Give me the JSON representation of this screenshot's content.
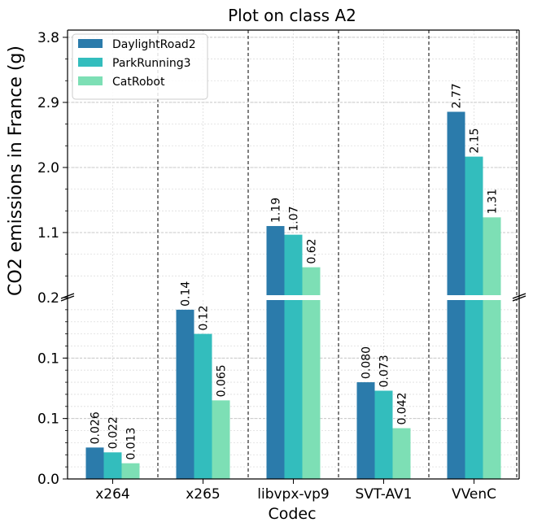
{
  "chart_data": {
    "type": "bar",
    "title": "Plot on class A2",
    "xlabel": "Codec",
    "ylabel": "CO2 emissions in France (g)",
    "categories": [
      "x264",
      "x265",
      "libvpx-vp9",
      "SVT-AV1",
      "VVenC"
    ],
    "series": [
      {
        "name": "DaylightRoad2",
        "color": "#2b7bab",
        "values": [
          0.026,
          0.14,
          1.19,
          0.08,
          2.77
        ],
        "labels": [
          "0.026",
          "0.14",
          "1.19",
          "0.080",
          "2.77"
        ]
      },
      {
        "name": "ParkRunning3",
        "color": "#33bdbd",
        "values": [
          0.022,
          0.12,
          1.07,
          0.073,
          2.15
        ],
        "labels": [
          "0.022",
          "0.12",
          "1.07",
          "0.073",
          "2.15"
        ]
      },
      {
        "name": "CatRobot",
        "color": "#7ddfb5",
        "values": [
          0.013,
          0.065,
          0.62,
          0.042,
          1.31
        ],
        "labels": [
          "0.013",
          "0.065",
          "0.62",
          "0.042",
          "1.31"
        ]
      }
    ],
    "broken_axis": true,
    "lower_ylim": [
      0,
      0.15
    ],
    "upper_ylim": [
      0.2,
      3.9
    ],
    "lower_ticks": [
      {
        "value": 0.0,
        "label": "0.0"
      },
      {
        "value": 0.05,
        "label": "0.1"
      },
      {
        "value": 0.1,
        "label": "0.1"
      },
      {
        "value": 0.15,
        "label": "0.2"
      }
    ],
    "upper_ticks": [
      {
        "value": 1.1,
        "label": "1.1"
      },
      {
        "value": 2.0,
        "label": "2.0"
      },
      {
        "value": 2.9,
        "label": "2.9"
      },
      {
        "value": 3.8,
        "label": "3.8"
      }
    ],
    "grid": true,
    "legend": "top-left"
  }
}
